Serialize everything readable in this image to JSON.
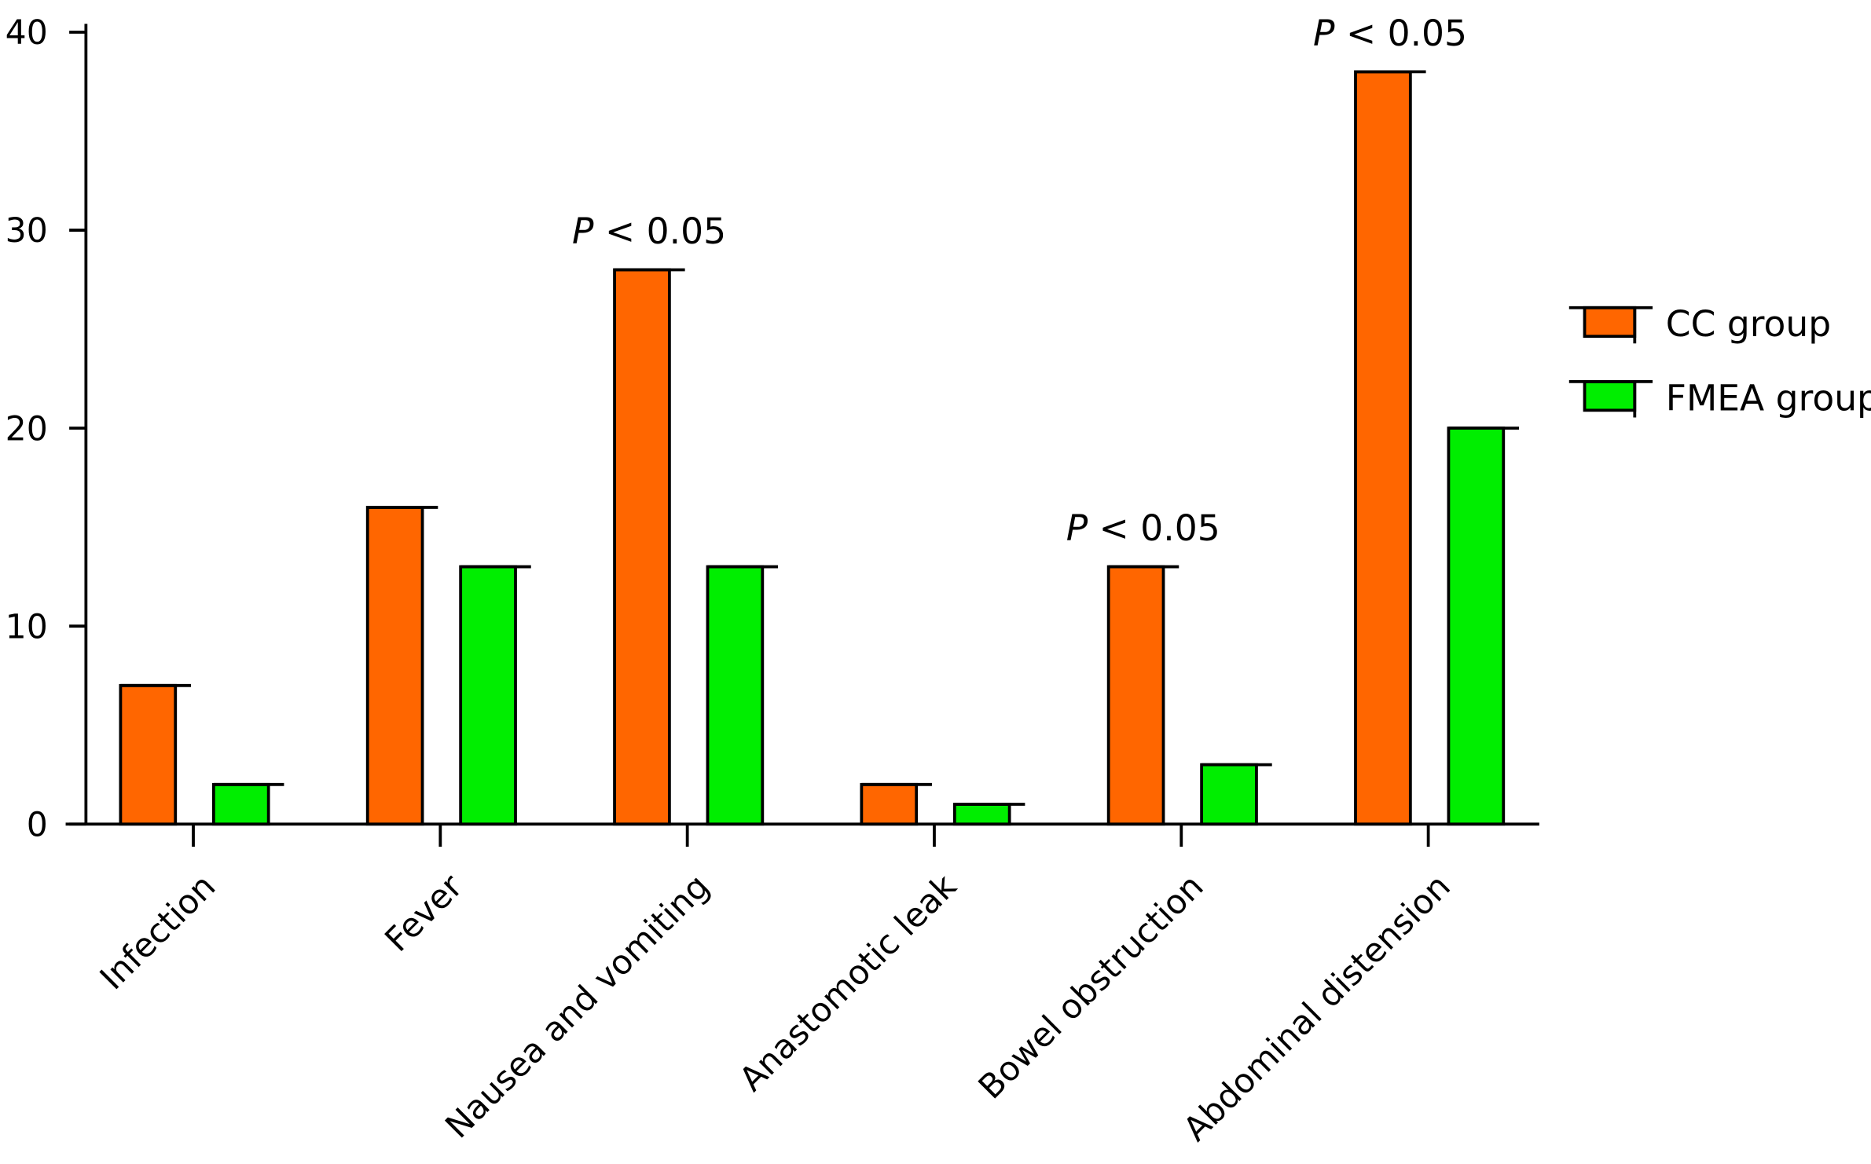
{
  "chart_data": {
    "type": "bar",
    "title": "",
    "xlabel": "",
    "ylabel": "",
    "ylim": [
      0,
      40
    ],
    "yticks": [
      "0",
      "10",
      "20",
      "30",
      "40"
    ],
    "categories": [
      "Infection",
      "Fever",
      "Nausea and vomiting",
      "Anastomotic leak",
      "Bowel obstruction",
      "Abdominal distension"
    ],
    "series": [
      {
        "name": "CC group",
        "color": "#ff6600",
        "values": [
          7,
          16,
          28,
          2,
          13,
          38
        ]
      },
      {
        "name": "FMEA group",
        "color": "#00ee00",
        "values": [
          2,
          13,
          13,
          1,
          3,
          20
        ]
      }
    ],
    "annotations": [
      {
        "category": "Nausea and vomiting",
        "italic": "P",
        "text": " < 0.05"
      },
      {
        "category": "Bowel obstruction",
        "italic": "P",
        "text": " < 0.05"
      },
      {
        "category": "Abdominal distension",
        "italic": "P",
        "text": " < 0.05"
      }
    ],
    "legend_position": "right",
    "grid": false
  }
}
